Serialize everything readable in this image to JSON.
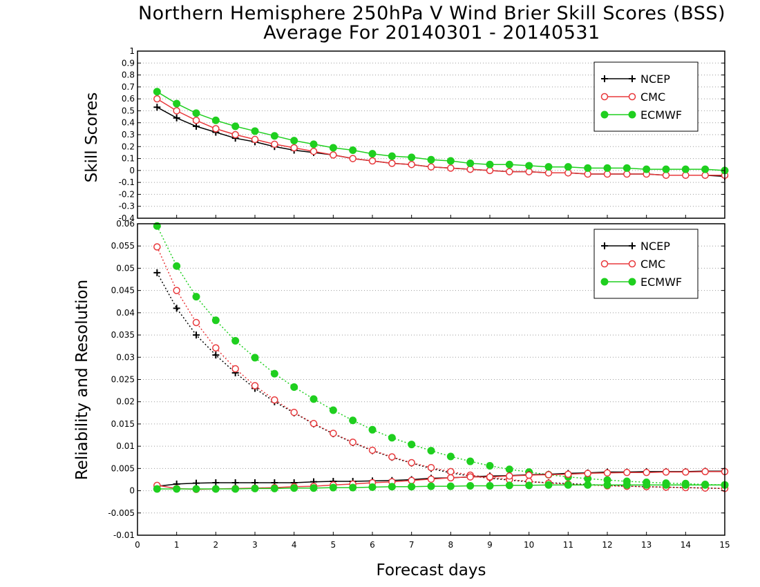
{
  "title": "Northern Hemisphere 250hPa V Wind Brier Skill Scores (BSS)",
  "subtitle": "Average For 20140301 - 20140531",
  "xlabel": "Forecast days",
  "colors": {
    "NCEP": "#000000",
    "CMC": "#e8383b",
    "ECMWF": "#1fcf1f"
  },
  "chart_data": [
    {
      "type": "line",
      "panel": "top",
      "ylabel": "Skill Scores",
      "xlim": [
        0,
        15
      ],
      "ylim": [
        -0.4,
        1
      ],
      "x_ticks": [
        0,
        1,
        2,
        3,
        4,
        5,
        6,
        7,
        8,
        9,
        10,
        11,
        12,
        13,
        14,
        15
      ],
      "y_ticks": [
        "-0.4",
        "-0.3",
        "-0.2",
        "-0.1",
        "0",
        "0.1",
        "0.2",
        "0.3",
        "0.4",
        "0.5",
        "0.6",
        "0.7",
        "0.8",
        "0.9",
        "1"
      ],
      "grid": true,
      "legend_position": "top-right",
      "x": [
        0.5,
        1,
        1.5,
        2,
        2.5,
        3,
        3.5,
        4,
        4.5,
        5,
        5.5,
        6,
        6.5,
        7,
        7.5,
        8,
        8.5,
        9,
        9.5,
        10,
        10.5,
        11,
        11.5,
        12,
        12.5,
        13,
        13.5,
        14,
        14.5,
        15
      ],
      "series": [
        {
          "name": "NCEP",
          "marker": "plus",
          "line": "solid",
          "values": [
            0.53,
            0.44,
            0.37,
            0.32,
            0.27,
            0.24,
            0.2,
            0.17,
            0.15,
            0.13,
            0.1,
            0.08,
            0.06,
            0.05,
            0.03,
            0.02,
            0.01,
            0.0,
            -0.01,
            -0.01,
            -0.02,
            -0.02,
            -0.03,
            -0.03,
            -0.03,
            -0.03,
            -0.04,
            -0.04,
            -0.04,
            -0.05
          ]
        },
        {
          "name": "CMC",
          "marker": "circle-open",
          "line": "solid",
          "values": [
            0.6,
            0.5,
            0.42,
            0.35,
            0.3,
            0.26,
            0.22,
            0.19,
            0.16,
            0.13,
            0.1,
            0.08,
            0.06,
            0.05,
            0.03,
            0.02,
            0.01,
            0.0,
            -0.01,
            -0.01,
            -0.02,
            -0.02,
            -0.03,
            -0.03,
            -0.03,
            -0.03,
            -0.04,
            -0.04,
            -0.04,
            -0.04
          ]
        },
        {
          "name": "ECMWF",
          "marker": "circle-filled",
          "line": "solid",
          "values": [
            0.66,
            0.56,
            0.48,
            0.42,
            0.37,
            0.33,
            0.29,
            0.25,
            0.22,
            0.19,
            0.17,
            0.14,
            0.12,
            0.11,
            0.09,
            0.08,
            0.06,
            0.05,
            0.05,
            0.04,
            0.03,
            0.03,
            0.02,
            0.02,
            0.02,
            0.01,
            0.01,
            0.01,
            0.01,
            0.0
          ]
        }
      ]
    },
    {
      "type": "line",
      "panel": "bottom",
      "ylabel": "Reliability and Resolution",
      "xlabel": "Forecast days",
      "xlim": [
        0,
        15
      ],
      "ylim": [
        -0.01,
        0.06
      ],
      "x_ticks": [
        0,
        1,
        2,
        3,
        4,
        5,
        6,
        7,
        8,
        9,
        10,
        11,
        12,
        13,
        14,
        15
      ],
      "y_ticks": [
        "-0.01",
        "-0.005",
        "0",
        "0.005",
        "0.01",
        "0.015",
        "0.02",
        "0.025",
        "0.03",
        "0.035",
        "0.04",
        "0.045",
        "0.05",
        "0.055",
        "0.06"
      ],
      "grid": true,
      "legend_position": "top-right",
      "x": [
        0.5,
        1,
        1.5,
        2,
        2.5,
        3,
        3.5,
        4,
        4.5,
        5,
        5.5,
        6,
        6.5,
        7,
        7.5,
        8,
        8.5,
        9,
        9.5,
        10,
        10.5,
        11,
        11.5,
        12,
        12.5,
        13,
        13.5,
        14,
        14.5,
        15
      ],
      "series": [
        {
          "name": "NCEP",
          "marker": "plus",
          "line": "dotted",
          "values": [
            0.049,
            0.041,
            0.035,
            0.0305,
            0.0265,
            0.023,
            0.02,
            0.0175,
            0.015,
            0.0128,
            0.0108,
            0.009,
            0.0075,
            0.0062,
            0.005,
            0.004,
            0.0033,
            0.0028,
            0.0024,
            0.002,
            0.0018,
            0.0016,
            0.0014,
            0.0012,
            0.001,
            0.0009,
            0.0008,
            0.0007,
            0.0006,
            0.0005
          ]
        },
        {
          "name": "CMC",
          "marker": "circle-open",
          "line": "dotted",
          "values": [
            0.0548,
            0.045,
            0.0378,
            0.0321,
            0.0274,
            0.0236,
            0.0204,
            0.0176,
            0.0151,
            0.0129,
            0.0109,
            0.0091,
            0.0076,
            0.0063,
            0.0052,
            0.0043,
            0.0035,
            0.003,
            0.0025,
            0.0021,
            0.0017,
            0.0015,
            0.0013,
            0.0011,
            0.001,
            0.0009,
            0.0008,
            0.0007,
            0.0006,
            0.0005
          ]
        },
        {
          "name": "ECMWF",
          "marker": "circle-filled",
          "line": "dotted",
          "values": [
            0.0595,
            0.0505,
            0.0436,
            0.0383,
            0.0337,
            0.0299,
            0.0263,
            0.0233,
            0.0206,
            0.0181,
            0.0158,
            0.0137,
            0.0119,
            0.0104,
            0.009,
            0.0077,
            0.0066,
            0.0056,
            0.0048,
            0.0042,
            0.0036,
            0.0031,
            0.0027,
            0.0024,
            0.0021,
            0.0019,
            0.0017,
            0.0016,
            0.0014,
            0.0013
          ]
        },
        {
          "name": "NCEP",
          "marker": "plus",
          "line": "solid",
          "values": [
            0.001,
            0.0015,
            0.0017,
            0.0018,
            0.0018,
            0.0018,
            0.0018,
            0.0018,
            0.002,
            0.0021,
            0.0021,
            0.0022,
            0.0023,
            0.0025,
            0.0028,
            0.0029,
            0.0031,
            0.0033,
            0.0034,
            0.0036,
            0.0037,
            0.0039,
            0.004,
            0.0042,
            0.0042,
            0.0043,
            0.0043,
            0.0043,
            0.0044,
            0.0044
          ]
        },
        {
          "name": "CMC",
          "marker": "circle-open",
          "line": "solid",
          "values": [
            0.0012,
            0.0005,
            0.0003,
            0.0004,
            0.0005,
            0.0006,
            0.0007,
            0.0009,
            0.001,
            0.0013,
            0.0015,
            0.0018,
            0.002,
            0.0023,
            0.0026,
            0.0029,
            0.0031,
            0.0031,
            0.0033,
            0.0035,
            0.0036,
            0.0037,
            0.0039,
            0.004,
            0.0041,
            0.0041,
            0.0042,
            0.0042,
            0.0043,
            0.0043
          ]
        },
        {
          "name": "ECMWF",
          "marker": "circle-filled",
          "line": "solid",
          "values": [
            0.0004,
            0.0004,
            0.0004,
            0.0004,
            0.0004,
            0.0005,
            0.0005,
            0.0006,
            0.0006,
            0.0007,
            0.0007,
            0.0008,
            0.0009,
            0.0009,
            0.001,
            0.001,
            0.0011,
            0.0011,
            0.0012,
            0.0012,
            0.0013,
            0.0013,
            0.0013,
            0.0013,
            0.0013,
            0.0013,
            0.0013,
            0.0013,
            0.0013,
            0.0013
          ]
        }
      ]
    }
  ]
}
